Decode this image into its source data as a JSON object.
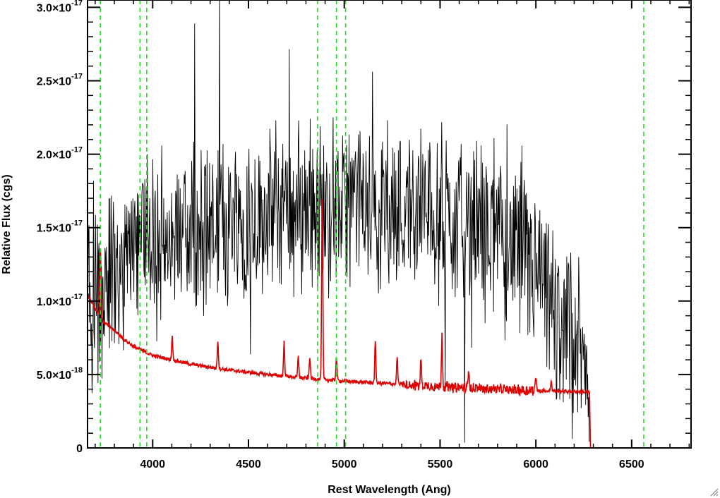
{
  "chart_data": {
    "type": "line",
    "title": "",
    "xlabel": "Rest Wavelength (Ang)",
    "ylabel": "Relative Flux (cgs)",
    "xlim": [
      3660,
      6810
    ],
    "ylim": [
      0,
      3.05e-17
    ],
    "x_ticks": [
      {
        "value": 4000,
        "label": "4000"
      },
      {
        "value": 4500,
        "label": "4500"
      },
      {
        "value": 5000,
        "label": "5000"
      },
      {
        "value": 5500,
        "label": "5500"
      },
      {
        "value": 6000,
        "label": "6000"
      },
      {
        "value": 6500,
        "label": "6500"
      }
    ],
    "y_ticks": [
      {
        "value": 0,
        "mantissa": "0",
        "exponent": ""
      },
      {
        "value": 5e-18,
        "mantissa": "5.0×10",
        "exponent": "-18"
      },
      {
        "value": 1e-17,
        "mantissa": "1.0×10",
        "exponent": "-17"
      },
      {
        "value": 1.5e-17,
        "mantissa": "1.5×10",
        "exponent": "-17"
      },
      {
        "value": 2e-17,
        "mantissa": "2.0×10",
        "exponent": "-17"
      },
      {
        "value": 2.5e-17,
        "mantissa": "2.5×10",
        "exponent": "-17"
      },
      {
        "value": 3e-17,
        "mantissa": "3.0×10",
        "exponent": "-17"
      }
    ],
    "grid": false,
    "series": [
      {
        "color": "#000000",
        "x": [
          3660,
          3700,
          3750,
          3800,
          3850,
          3900,
          3950,
          4000,
          4100,
          4200,
          4300,
          4400,
          4500,
          4600,
          4700,
          4800,
          4900,
          5000,
          5100,
          5200,
          5300,
          5400,
          5500,
          5600,
          5700,
          5800,
          5900,
          6000,
          6100,
          6200,
          6280
        ],
        "y": [
          1e-17,
          1.05e-17,
          1.15e-17,
          1.2e-17,
          1.25e-17,
          1.3e-17,
          1.35e-17,
          1.4e-17,
          1.45e-17,
          1.5e-17,
          1.53e-17,
          1.56e-17,
          1.58e-17,
          1.6e-17,
          1.62e-17,
          1.63e-17,
          1.64e-17,
          1.65e-17,
          1.65e-17,
          1.65e-17,
          1.64e-17,
          1.62e-17,
          1.6e-17,
          1.57e-17,
          1.52e-17,
          1.45e-17,
          1.35e-17,
          1.15e-17,
          9e-18,
          7e-18,
          5.5e-18
        ],
        "noise_amplitude": 4.5e-18
      },
      {
        "color": "#dd0000",
        "x": [
          3660,
          3700,
          3750,
          3800,
          3850,
          3900,
          3950,
          4000,
          4200,
          4400,
          4600,
          4800,
          5000,
          5200,
          5400,
          5600,
          5800,
          6000,
          6200,
          6280,
          6285,
          6810
        ],
        "y": [
          1.05e-17,
          9.5e-18,
          8.5e-18,
          8e-18,
          7.4e-18,
          6.9e-18,
          6.6e-18,
          6.3e-18,
          5.7e-18,
          5.3e-18,
          5e-18,
          4.75e-18,
          4.55e-18,
          4.4e-18,
          4.25e-18,
          4.1e-18,
          4e-18,
          3.9e-18,
          3.85e-18,
          3.8e-18,
          0,
          0
        ],
        "emission_lines": [
          {
            "x": 3727,
            "peak": 1.38e-17
          },
          {
            "x": 4102,
            "peak": 7.6e-18
          },
          {
            "x": 4340,
            "peak": 7.3e-18
          },
          {
            "x": 4686,
            "peak": 7.2e-18
          },
          {
            "x": 4760,
            "peak": 6.2e-18
          },
          {
            "x": 4820,
            "peak": 6.2e-18
          },
          {
            "x": 4885,
            "peak": 1.75e-17
          },
          {
            "x": 4959,
            "peak": 6.2e-18
          },
          {
            "x": 5162,
            "peak": 7.2e-18
          },
          {
            "x": 5276,
            "peak": 6.2e-18
          },
          {
            "x": 5400,
            "peak": 6e-18
          },
          {
            "x": 5510,
            "peak": 7.7e-18
          },
          {
            "x": 5650,
            "peak": 5.4e-18
          },
          {
            "x": 6000,
            "peak": 4.8e-18
          },
          {
            "x": 6080,
            "peak": 4.6e-18
          }
        ]
      }
    ],
    "vertical_lines": {
      "color": "#22dd22",
      "style": "dashed",
      "x": [
        3727,
        3934,
        3969,
        4861,
        4959,
        5007,
        6563
      ]
    }
  }
}
